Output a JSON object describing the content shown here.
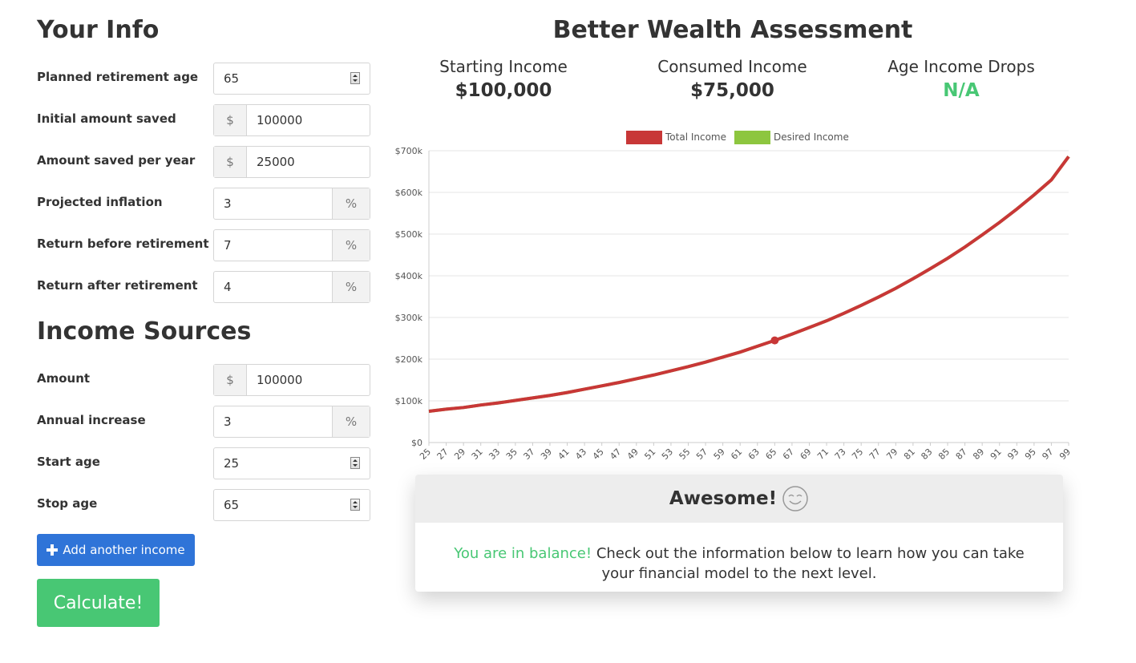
{
  "your_info": {
    "title": "Your Info",
    "fields": [
      {
        "label": "Planned retirement age",
        "value": "65"
      },
      {
        "label": "Initial amount saved",
        "prefix": "$",
        "value": "100000"
      },
      {
        "label": "Amount saved per year",
        "prefix": "$",
        "value": "25000"
      },
      {
        "label": "Projected inflation",
        "value": "3",
        "suffix": "%"
      },
      {
        "label": "Return before retirement",
        "value": "7",
        "suffix": "%"
      },
      {
        "label": "Return after retirement",
        "value": "4",
        "suffix": "%"
      }
    ]
  },
  "income_sources": {
    "title": "Income Sources",
    "fields": [
      {
        "label": "Amount",
        "prefix": "$",
        "value": "100000"
      },
      {
        "label": "Annual increase",
        "value": "3",
        "suffix": "%"
      },
      {
        "label": "Start age",
        "value": "25"
      },
      {
        "label": "Stop age",
        "value": "65"
      }
    ]
  },
  "buttons": {
    "add": "Add another income",
    "calculate": "Calculate!"
  },
  "assessment": {
    "title": "Better Wealth Assessment",
    "stats": [
      {
        "label": "Starting Income",
        "value": "$100,000",
        "color": "#333333"
      },
      {
        "label": "Consumed Income",
        "value": "$75,000",
        "color": "#333333"
      },
      {
        "label": "Age Income Drops",
        "value": "N/A",
        "color": "#48c774"
      }
    ]
  },
  "chart_data": {
    "type": "line",
    "x": [
      25,
      27,
      29,
      31,
      33,
      35,
      37,
      39,
      41,
      43,
      45,
      47,
      49,
      51,
      53,
      55,
      57,
      59,
      61,
      63,
      65,
      67,
      69,
      71,
      73,
      75,
      77,
      79,
      81,
      83,
      85,
      87,
      89,
      91,
      93,
      95,
      97,
      99
    ],
    "xlim": [
      25,
      99
    ],
    "series": [
      {
        "name": "Desired Income",
        "color": "#8dc63f",
        "values": [
          75000,
          80000,
          84000,
          90000,
          95000,
          101000,
          107000,
          113000,
          120000,
          128000,
          136000,
          144000,
          153000,
          162000,
          172000,
          182000,
          193000,
          205000,
          217000,
          231000,
          245000,
          260000,
          276000,
          292000,
          310000,
          329000,
          349000,
          370000,
          393000,
          417000,
          442000,
          469000,
          498000,
          528000,
          560000,
          594000,
          630000,
          686000
        ]
      },
      {
        "name": "Total Income",
        "color": "#c83737",
        "values": [
          75000,
          80000,
          84000,
          90000,
          95000,
          101000,
          107000,
          113000,
          120000,
          128000,
          136000,
          144000,
          153000,
          162000,
          172000,
          182000,
          193000,
          205000,
          217000,
          231000,
          245000,
          260000,
          276000,
          292000,
          310000,
          329000,
          349000,
          370000,
          393000,
          417000,
          442000,
          469000,
          498000,
          528000,
          560000,
          594000,
          630000,
          686000
        ]
      }
    ],
    "legend_order": [
      "Total Income",
      "Desired Income"
    ],
    "highlight_x": 65,
    "ylim": [
      0,
      700000
    ],
    "yticks": [
      {
        "value": 0,
        "label": "$0"
      },
      {
        "value": 100000,
        "label": "$100k"
      },
      {
        "value": 200000,
        "label": "$200k"
      },
      {
        "value": 300000,
        "label": "$300k"
      },
      {
        "value": 400000,
        "label": "$400k"
      },
      {
        "value": 500000,
        "label": "$500k"
      },
      {
        "value": 600000,
        "label": "$600k"
      },
      {
        "value": 700000,
        "label": "$700k"
      }
    ],
    "grid": true
  },
  "result": {
    "heading": "Awesome!",
    "highlight": "You are in balance!",
    "text": "Check out the information below to learn how you can take your financial model to the next level."
  }
}
